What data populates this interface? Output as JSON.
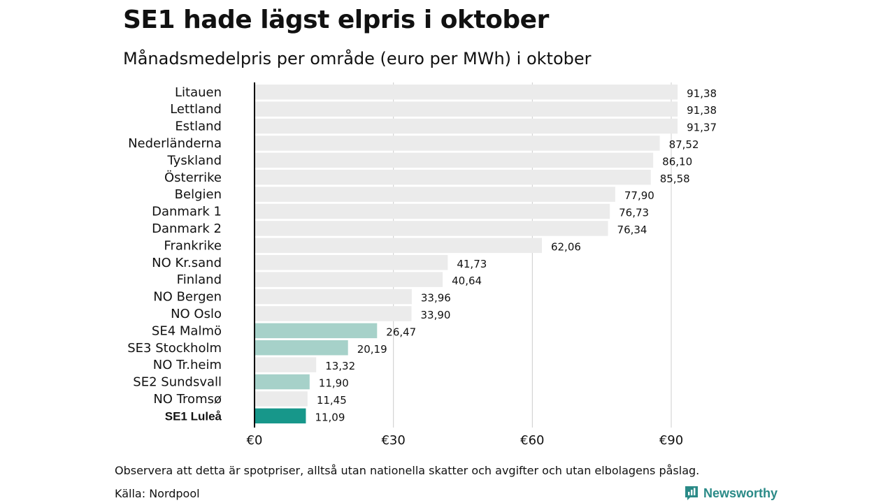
{
  "title": "SE1 hade lägst elpris i oktober",
  "subtitle": "Månadsmedelpris per område (euro per MWh) i oktober",
  "footnote": "Observera att detta är spotpriser, alltså utan nationella skatter och avgifter och utan elbolagens påslag.",
  "source": "Källa: Nordpool",
  "brand": "Newsworthy",
  "colors": {
    "default": "#ebebeb",
    "swedish": "#a6d1c9",
    "highlight": "#17978a",
    "grid": "#cccccc",
    "brand": "#2a8a87"
  },
  "chart_data": {
    "type": "bar",
    "orientation": "horizontal",
    "xlim": [
      0,
      90
    ],
    "xticks": [
      0,
      30,
      60,
      90
    ],
    "xtick_labels": [
      "€0",
      "€30",
      "€60",
      "€90"
    ],
    "grid": true,
    "categories": [
      "Litauen",
      "Lettland",
      "Estland",
      "Nederländerna",
      "Tyskland",
      "Österrike",
      "Belgien",
      "Danmark 1",
      "Danmark 2",
      "Frankrike",
      "NO Kr.sand",
      "Finland",
      "NO Bergen",
      "NO Oslo",
      "SE4 Malmö",
      "SE3 Stockholm",
      "NO Tr.heim",
      "SE2 Sundsvall",
      "NO Tromsø",
      "SE1 Luleå"
    ],
    "values": [
      91.38,
      91.38,
      91.37,
      87.52,
      86.1,
      85.58,
      77.9,
      76.73,
      76.34,
      62.06,
      41.73,
      40.64,
      33.96,
      33.9,
      26.47,
      20.19,
      13.32,
      11.9,
      11.45,
      11.09
    ],
    "value_labels": [
      "91,38",
      "91,38",
      "91,37",
      "87,52",
      "86,10",
      "85,58",
      "77,90",
      "76,73",
      "76,34",
      "62,06",
      "41,73",
      "40,64",
      "33,96",
      "33,90",
      "26,47",
      "20,19",
      "13,32",
      "11,90",
      "11,45",
      "11,09"
    ],
    "bar_colors": [
      "default",
      "default",
      "default",
      "default",
      "default",
      "default",
      "default",
      "default",
      "default",
      "default",
      "default",
      "default",
      "default",
      "default",
      "swedish",
      "swedish",
      "default",
      "swedish",
      "default",
      "highlight"
    ],
    "bold_categories": [
      "SE1 Luleå"
    ]
  }
}
